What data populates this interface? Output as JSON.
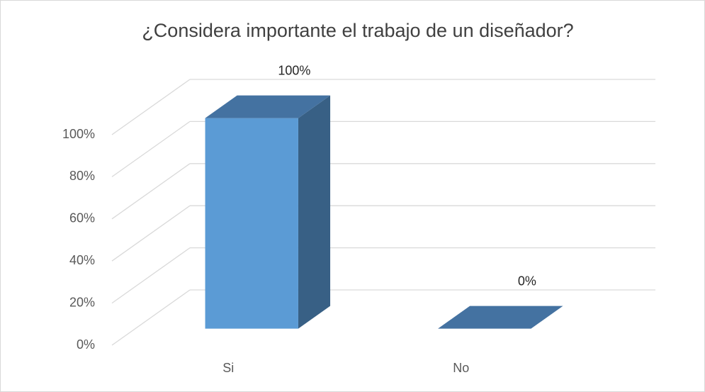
{
  "chart_data": {
    "type": "bar3d",
    "title": "¿Considera importante el trabajo de un diseñador?",
    "categories": [
      "Si",
      "No"
    ],
    "values": [
      100,
      0
    ],
    "value_labels": [
      "100%",
      "0%"
    ],
    "color": "#5b9bd5",
    "ylim": [
      0,
      100
    ],
    "yticks": [
      {
        "value": 0,
        "label": "0%"
      },
      {
        "value": 20,
        "label": "20%"
      },
      {
        "value": 40,
        "label": "40%"
      },
      {
        "value": 60,
        "label": "60%"
      },
      {
        "value": 80,
        "label": "80%"
      },
      {
        "value": 100,
        "label": "100%"
      }
    ],
    "grid": true
  }
}
